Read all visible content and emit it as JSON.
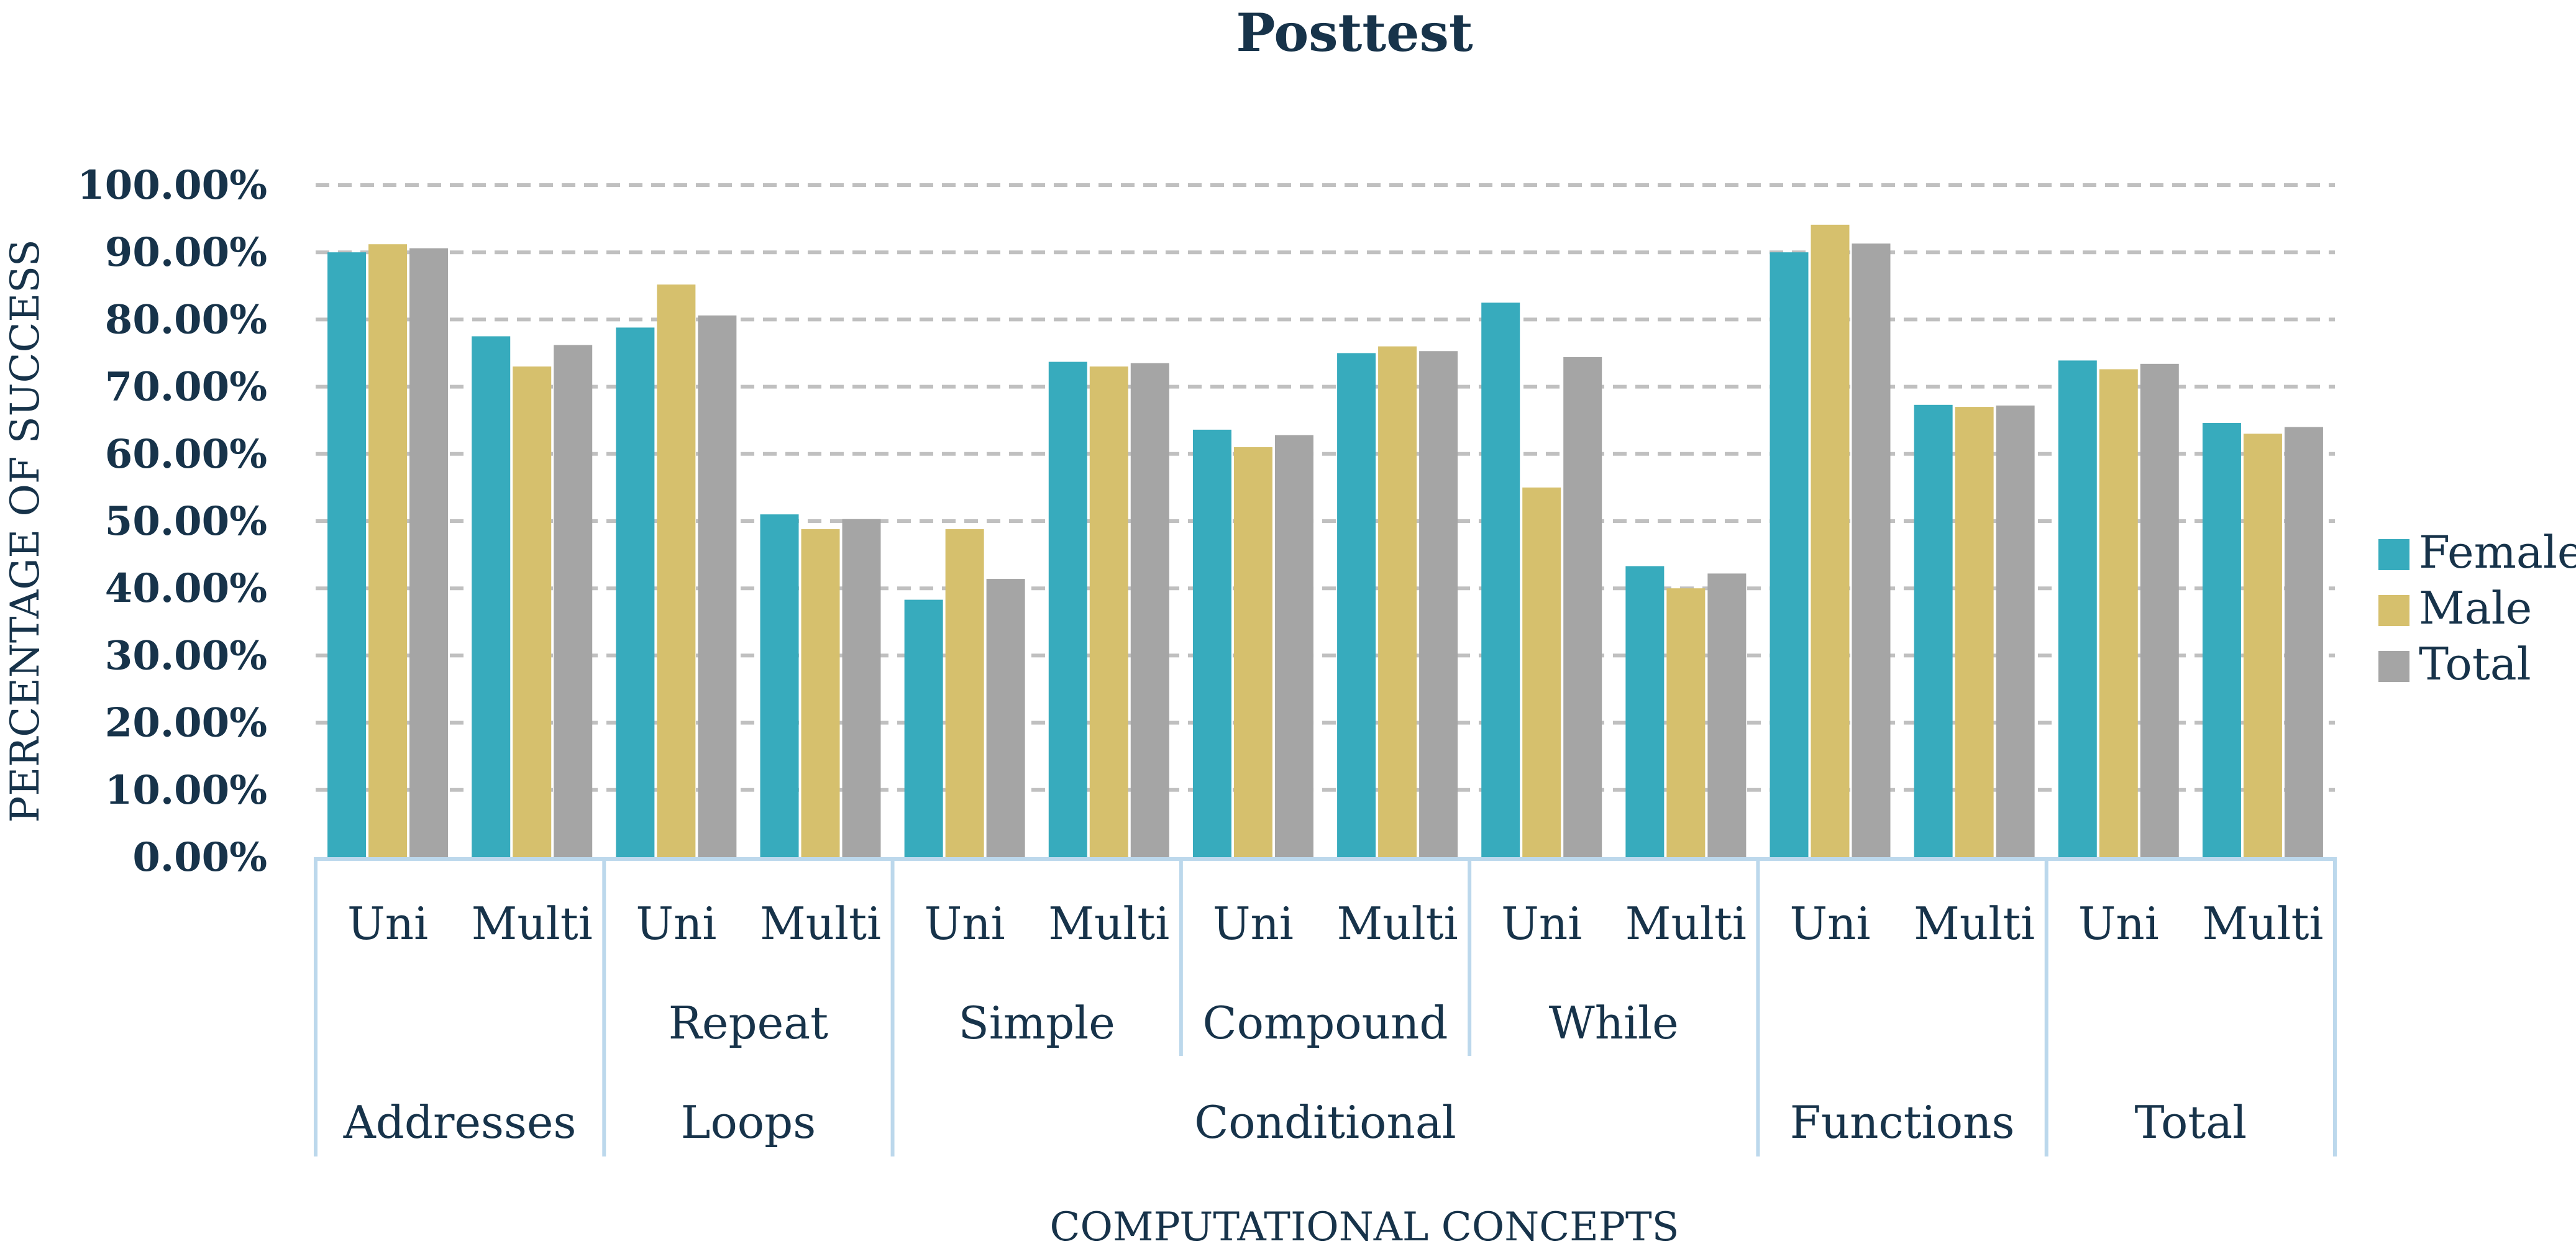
{
  "chart_data": {
    "type": "bar",
    "title": "Posttest",
    "xlabel": "COMPUTATIONAL CONCEPTS",
    "ylabel": "PERCENTAGE OF SUCCESS",
    "ylim": [
      0,
      100
    ],
    "yticks": [
      "0.00%",
      "10.00%",
      "20.00%",
      "30.00%",
      "40.00%",
      "50.00%",
      "60.00%",
      "70.00%",
      "80.00%",
      "90.00%",
      "100.00%"
    ],
    "grid": true,
    "legend_position": "right",
    "categories": [
      {
        "level1": "Uni",
        "level2": "",
        "level3": "Addresses"
      },
      {
        "level1": "Multi",
        "level2": "",
        "level3": "Addresses"
      },
      {
        "level1": "Uni",
        "level2": "Repeat",
        "level3": "Loops"
      },
      {
        "level1": "Multi",
        "level2": "Repeat",
        "level3": "Loops"
      },
      {
        "level1": "Uni",
        "level2": "Simple",
        "level3": "Conditional"
      },
      {
        "level1": "Multi",
        "level2": "Simple",
        "level3": "Conditional"
      },
      {
        "level1": "Uni",
        "level2": "Compound",
        "level3": "Conditional"
      },
      {
        "level1": "Multi",
        "level2": "Compound",
        "level3": "Conditional"
      },
      {
        "level1": "Uni",
        "level2": "While",
        "level3": "Conditional"
      },
      {
        "level1": "Multi",
        "level2": "While",
        "level3": "Conditional"
      },
      {
        "level1": "Uni",
        "level2": "",
        "level3": "Functions"
      },
      {
        "level1": "Multi",
        "level2": "",
        "level3": "Functions"
      },
      {
        "level1": "Uni",
        "level2": "",
        "level3": "Total"
      },
      {
        "level1": "Multi",
        "level2": "",
        "level3": "Total"
      }
    ],
    "level2_groups": [
      {
        "label": "Repeat",
        "start": 2,
        "end": 3
      },
      {
        "label": "Simple",
        "start": 4,
        "end": 5
      },
      {
        "label": "Compound",
        "start": 6,
        "end": 7
      },
      {
        "label": "While",
        "start": 8,
        "end": 9
      }
    ],
    "level3_groups": [
      {
        "label": "Addresses",
        "start": 0,
        "end": 1
      },
      {
        "label": "Loops",
        "start": 2,
        "end": 3
      },
      {
        "label": "Conditional",
        "start": 4,
        "end": 9
      },
      {
        "label": "Functions",
        "start": 10,
        "end": 11
      },
      {
        "label": "Total",
        "start": 12,
        "end": 13
      }
    ],
    "series": [
      {
        "name": "Female",
        "color": "#37abbd",
        "values": [
          90,
          77.5,
          78.8,
          51,
          38.3,
          73.7,
          63.6,
          75,
          82.5,
          43.3,
          90,
          67.3,
          73.9,
          64.6
        ]
      },
      {
        "name": "Male",
        "color": "#d6c06d",
        "values": [
          91.2,
          73,
          85.2,
          48.8,
          48.8,
          73,
          61,
          76,
          55,
          40,
          94.1,
          67,
          72.6,
          63
        ]
      },
      {
        "name": "Total",
        "color": "#a5a5a5",
        "values": [
          90.6,
          76.2,
          80.6,
          50.3,
          41.4,
          73.5,
          62.8,
          75.3,
          74.4,
          42.2,
          91.3,
          67.2,
          73.4,
          64
        ]
      }
    ]
  }
}
